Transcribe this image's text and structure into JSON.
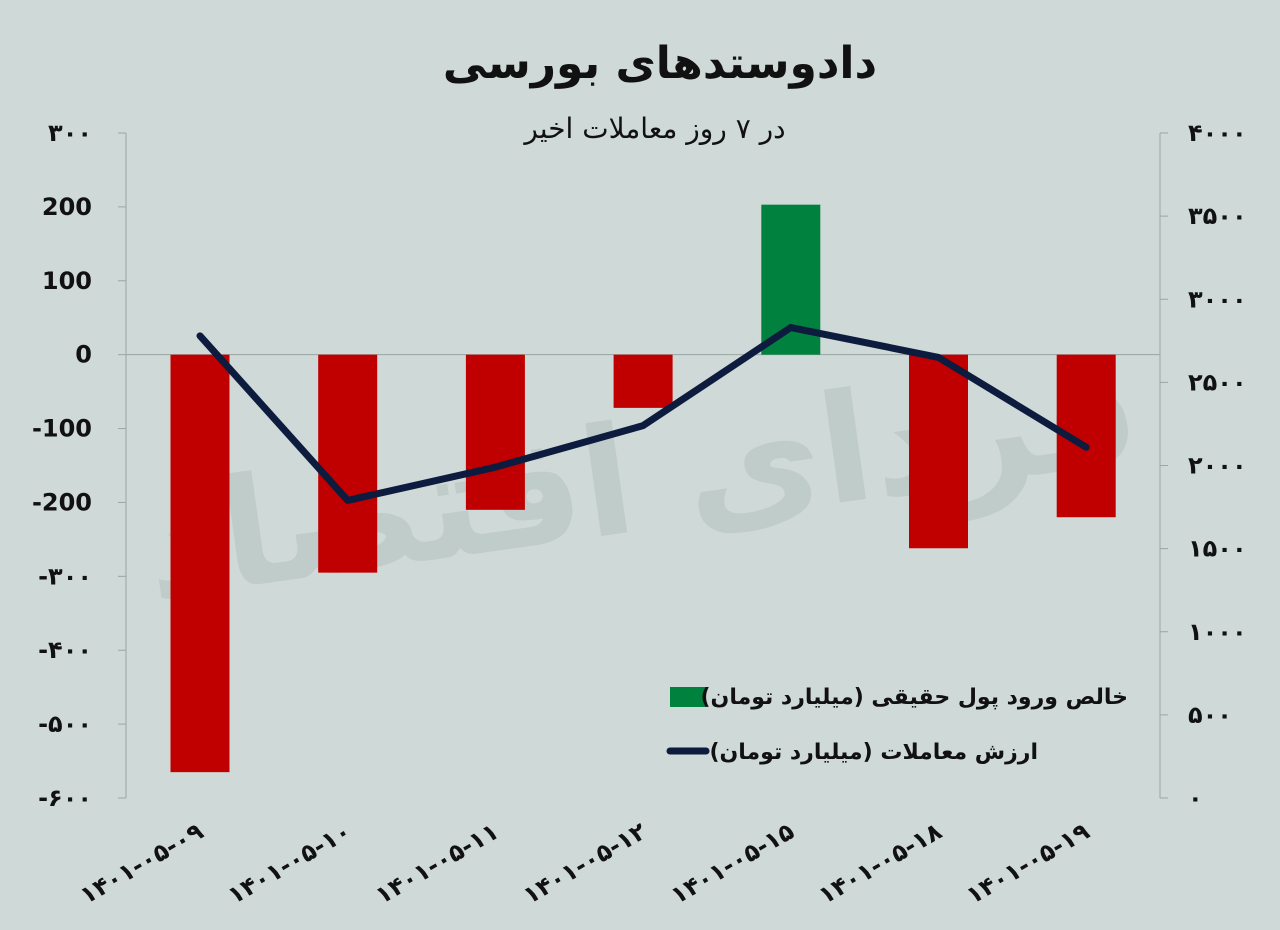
{
  "chart_data": {
    "type": "bar+line",
    "title": "دادوستدهای بورسی",
    "subtitle": "در ۷ روز معاملات اخیر",
    "categories": [
      "1401-05-09",
      "1401-05-10",
      "1401-05-11",
      "1401-05-12",
      "1401-05-15",
      "1401-05-18",
      "1401-05-19"
    ],
    "category_labels": [
      "۱۴۰۱-۰۵-۰۹",
      "۱۴۰۱-۰۵-۱۰",
      "۱۴۰۱-۰۵-۱۱",
      "۱۴۰۱-۰۵-۱۲",
      "۱۴۰۱-۰۵-۱۵",
      "۱۴۰۱-۰۵-۱۸",
      "۱۴۰۱-۰۵-۱۹"
    ],
    "series": [
      {
        "name": "خالص ورود پول حقیقی (میلیارد تومان)",
        "type": "bar",
        "axis": "left",
        "values": [
          -565,
          -295,
          -210,
          -72,
          203,
          -262,
          -220
        ],
        "positive_color": "#00813d",
        "negative_color": "#c00000"
      },
      {
        "name": "ارزش معاملات (میلیارد تومان)",
        "type": "line",
        "axis": "right",
        "values": [
          2780,
          1790,
          1990,
          2240,
          2830,
          2650,
          2110
        ],
        "color": "#0d1b3e"
      }
    ],
    "left_axis": {
      "ylim": [
        -600,
        300
      ],
      "ticks": [
        300,
        200,
        100,
        0,
        -100,
        -200,
        -300,
        -400,
        -500,
        -600
      ],
      "tick_labels": [
        "۳۰۰",
        "200",
        "100",
        "0",
        "-100",
        "-200",
        "-۳۰۰",
        "-۴۰۰",
        "-۵۰۰",
        "-۶۰۰"
      ]
    },
    "right_axis": {
      "ylim": [
        0,
        4000
      ],
      "ticks": [
        4000,
        3500,
        3000,
        2500,
        2000,
        1500,
        1000,
        500,
        0
      ],
      "tick_labels": [
        "۴۰۰۰",
        "۳۵۰۰",
        "۳۰۰۰",
        "۲۵۰۰",
        "۲۰۰۰",
        "۱۵۰۰",
        "۱۰۰۰",
        "۵۰۰",
        "۰"
      ]
    },
    "legend": {
      "position": "bottom-right",
      "entries": [
        "خالص ورود پول حقیقی (میلیارد تومان)",
        "ارزش معاملات (میلیارد تومان)"
      ]
    },
    "watermark": "فردای اقتصاد",
    "grid": false
  }
}
